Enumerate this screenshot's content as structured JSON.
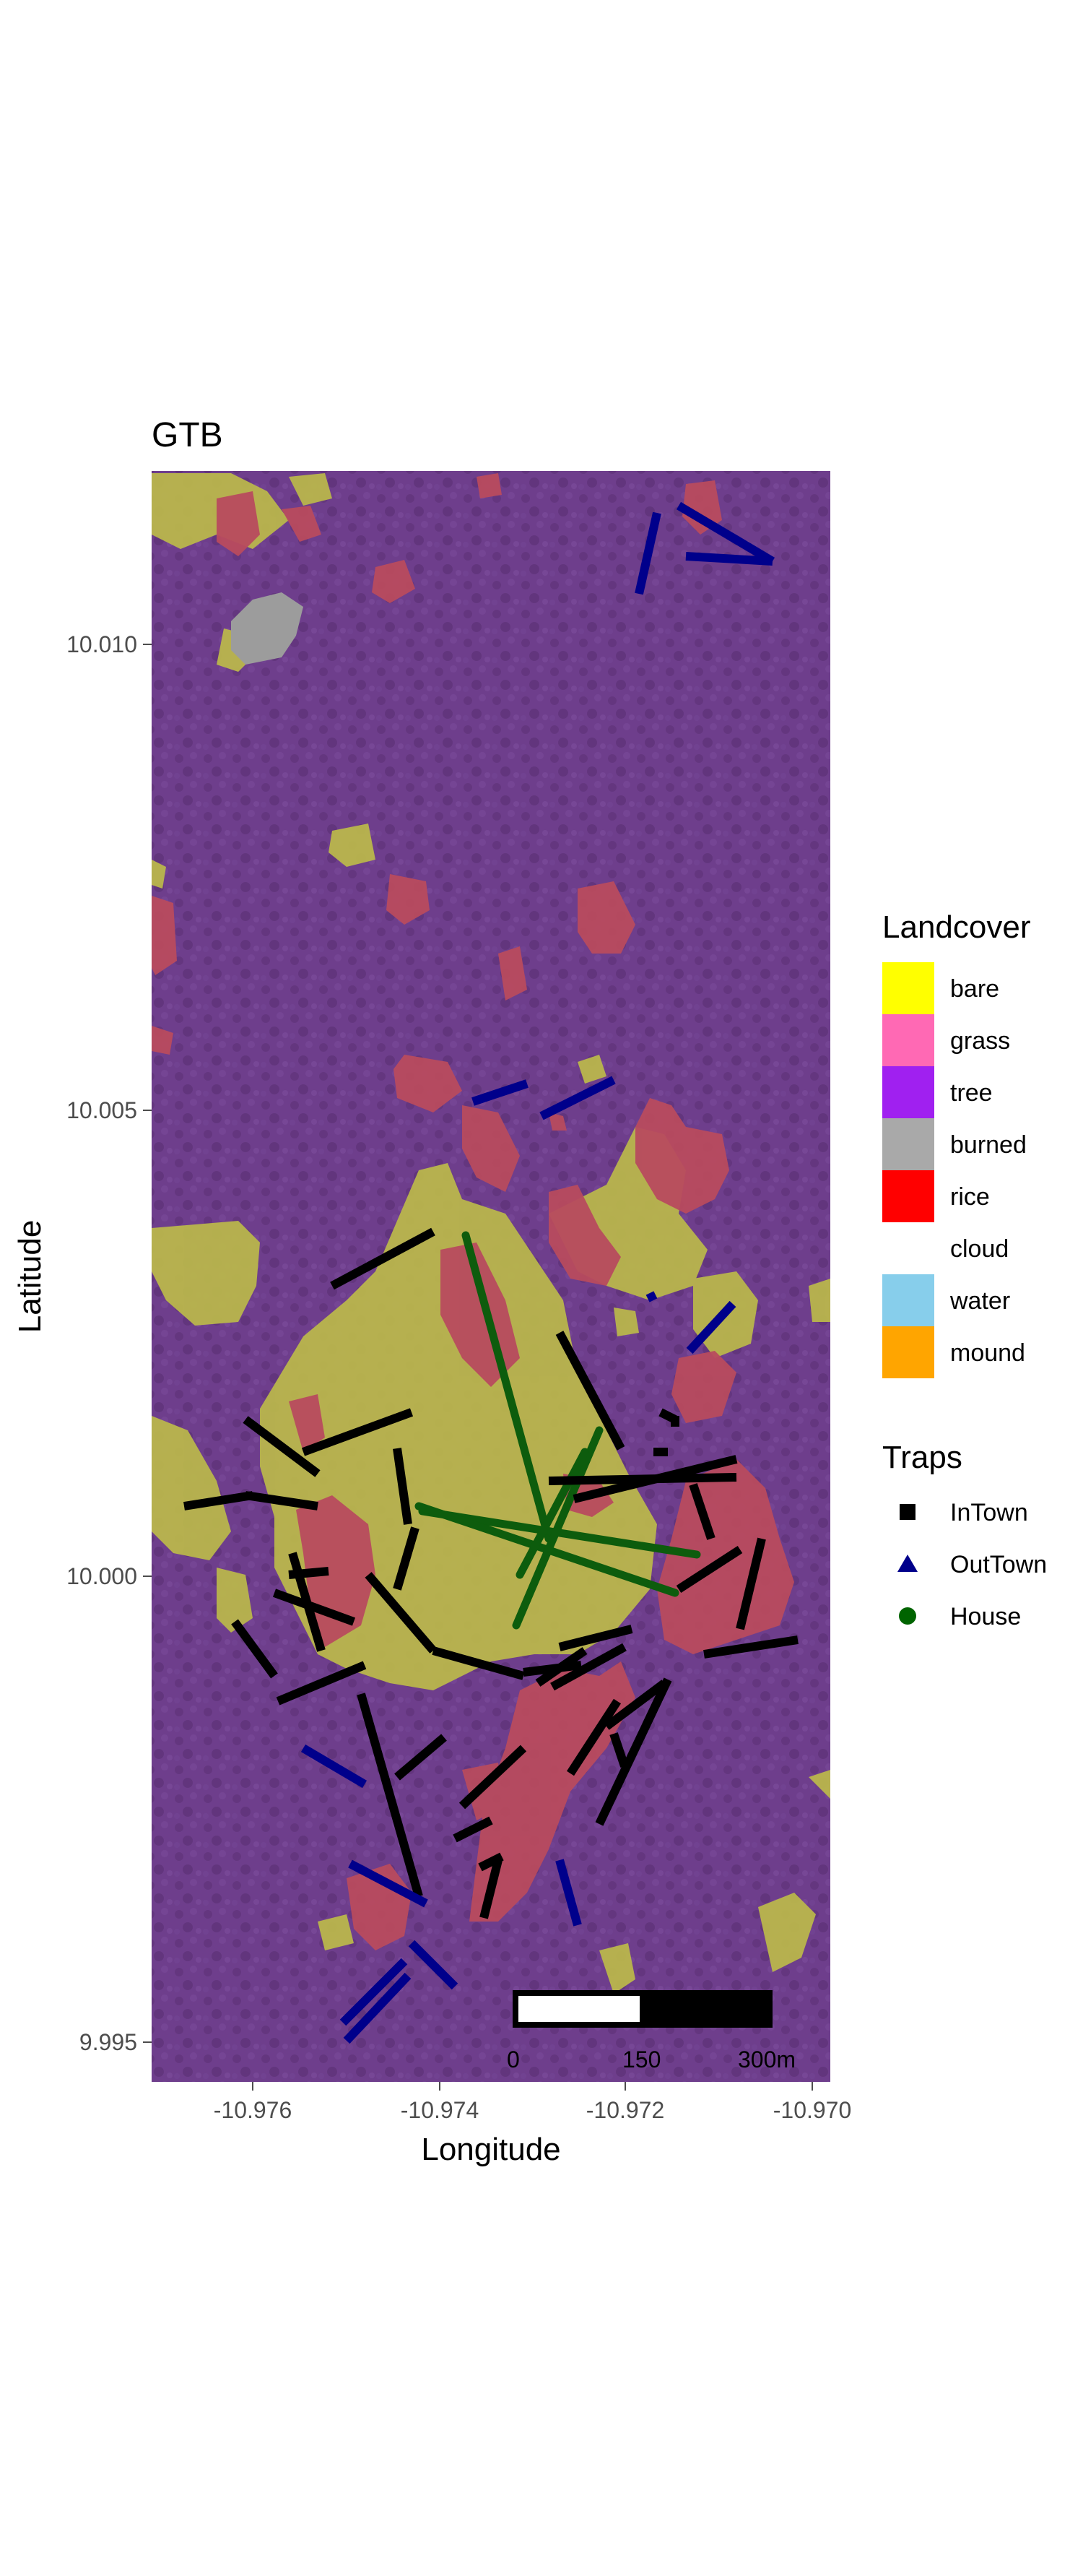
{
  "map": {
    "title": "GTB",
    "x_axis": {
      "label": "Longitude",
      "ticks": [
        "-10.976",
        "-10.974",
        "-10.972",
        "-10.970"
      ]
    },
    "y_axis": {
      "label": "Latitude",
      "ticks": [
        "10.010",
        "10.005",
        "10.000",
        "9.995"
      ]
    },
    "scale_bar": {
      "labels": [
        "0",
        "150",
        "300m"
      ]
    }
  },
  "legend": {
    "landcover": {
      "title": "Landcover",
      "items": [
        {
          "label": "bare",
          "color": "#ffff00"
        },
        {
          "label": "grass",
          "color": "#ff69b4"
        },
        {
          "label": "tree",
          "color": "#a020f0"
        },
        {
          "label": "burned",
          "color": "#a9a9a9"
        },
        {
          "label": "rice",
          "color": "#ff0000"
        },
        {
          "label": "cloud",
          "color": "#ffffff"
        },
        {
          "label": "water",
          "color": "#87ceeb"
        },
        {
          "label": "mound",
          "color": "#ffa500"
        }
      ]
    },
    "traps": {
      "title": "Traps",
      "items": [
        {
          "label": "InTown",
          "color": "#000000",
          "shape": "square"
        },
        {
          "label": "OutTown",
          "color": "#00008b",
          "shape": "triangle"
        },
        {
          "label": "House",
          "color": "#006400",
          "shape": "circle"
        }
      ]
    }
  }
}
